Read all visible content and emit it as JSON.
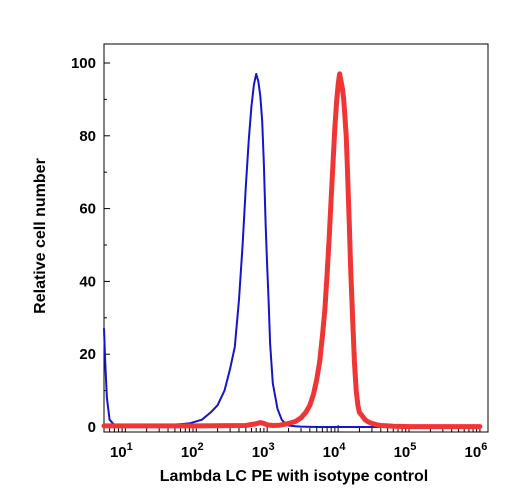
{
  "chart_data": {
    "type": "line",
    "title": "",
    "xlabel": "Lambda LC PE with isotype control",
    "ylabel": "Relative cell number",
    "x_scale": "log",
    "xlim": [
      5,
      1300000
    ],
    "ylim": [
      0,
      100
    ],
    "y_ticks": [
      0,
      20,
      40,
      60,
      80,
      100
    ],
    "x_ticks": [
      {
        "value": 10,
        "base": "10",
        "exp": "1"
      },
      {
        "value": 100,
        "base": "10",
        "exp": "2"
      },
      {
        "value": 1000,
        "base": "10",
        "exp": "3"
      },
      {
        "value": 10000,
        "base": "10",
        "exp": "4"
      },
      {
        "value": 100000,
        "base": "10",
        "exp": "5"
      },
      {
        "value": 1000000,
        "base": "10",
        "exp": "6"
      }
    ],
    "grid": false,
    "series": [
      {
        "color": "#1515c8",
        "x": [
          5,
          5.2,
          5.5,
          6,
          7,
          10,
          20,
          40,
          80,
          120,
          160,
          200,
          250,
          300,
          350,
          400,
          450,
          500,
          550,
          600,
          650,
          700,
          750,
          800,
          850,
          900,
          950,
          1000,
          1050,
          1100,
          1200,
          1400,
          1600,
          1800,
          2000,
          2500,
          3000,
          5000,
          10000,
          100000,
          1000000
        ],
        "y": [
          27,
          18,
          8,
          2,
          0.5,
          0,
          0.2,
          0.5,
          1,
          2,
          4,
          6,
          10,
          16,
          22,
          35,
          50,
          66,
          79,
          88,
          94,
          97,
          95,
          91,
          84,
          72,
          56,
          44,
          34,
          23,
          12,
          5,
          2,
          1,
          0.4,
          0.2,
          0.1,
          0,
          0,
          0,
          0
        ]
      },
      {
        "color": "#f03535",
        "x": [
          5,
          100,
          500,
          700,
          800,
          900,
          1000,
          1200,
          1500,
          2000,
          2500,
          3000,
          3500,
          4000,
          4500,
          5000,
          5500,
          6000,
          6500,
          7000,
          7500,
          8000,
          8500,
          9000,
          9500,
          10000,
          10500,
          11000,
          11500,
          12000,
          12500,
          13000,
          13500,
          14000,
          14500,
          15000,
          16000,
          17000,
          18000,
          19000,
          20000,
          22000,
          24000,
          26000,
          30000,
          35000,
          40000,
          50000,
          60000,
          100000,
          1000000
        ],
        "y": [
          0.3,
          0.3,
          0.4,
          0.9,
          1.2,
          1.0,
          0.6,
          0.4,
          0.5,
          1.0,
          1.5,
          2.5,
          4,
          6,
          9,
          13,
          18,
          25,
          32,
          42,
          52,
          63,
          73,
          82,
          89,
          94,
          97,
          95,
          93,
          90,
          85,
          80,
          72,
          62,
          54,
          44,
          30,
          18,
          10,
          6,
          4,
          3,
          2,
          1.5,
          1,
          0.6,
          0.4,
          0.3,
          0.2,
          0.1,
          0.1
        ]
      }
    ]
  }
}
